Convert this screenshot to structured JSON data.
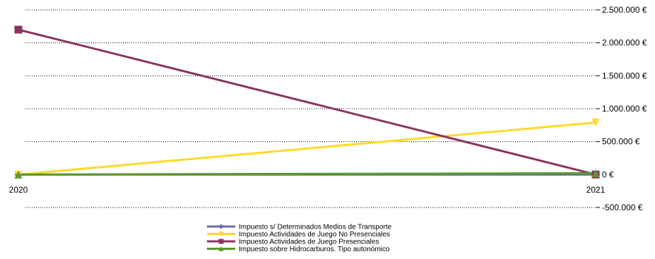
{
  "chart_data": {
    "type": "line",
    "x": [
      "2020",
      "2021"
    ],
    "series": [
      {
        "name": "Impuesto s/ Determinados Medios de Transporte",
        "values": [
          0,
          0
        ],
        "color": "#6b6ba6",
        "marker": "diamond"
      },
      {
        "name": "Impuesto Actividades de Juego No Presenciales",
        "values": [
          0,
          790000
        ],
        "color": "#ffd829",
        "marker": "triangle-down"
      },
      {
        "name": "Impuesto Actividades de Juego Presenciales",
        "values": [
          2200000,
          0
        ],
        "color": "#8c3362",
        "marker": "square"
      },
      {
        "name": "Impuesto sobre Hidrocarburos. Tipo autonómico",
        "values": [
          0,
          20000
        ],
        "color": "#5a9a2a",
        "marker": "triangle-up"
      }
    ],
    "y_ticks": [
      {
        "value": 2500000,
        "label": "2.500.000 €"
      },
      {
        "value": 2000000,
        "label": "2.000.000 €"
      },
      {
        "value": 1500000,
        "label": "1.500.000 €"
      },
      {
        "value": 1000000,
        "label": "1.000.000 €"
      },
      {
        "value": 500000,
        "label": "500.000 €"
      },
      {
        "value": 0,
        "label": "0 €"
      },
      {
        "value": -500000,
        "label": "-500.000 €"
      }
    ],
    "ylim": [
      -500000,
      2500000
    ],
    "negative_label_color": "#ff0000",
    "grid": "dotted horizontal",
    "y_axis_side": "right",
    "legend_position": "bottom"
  }
}
